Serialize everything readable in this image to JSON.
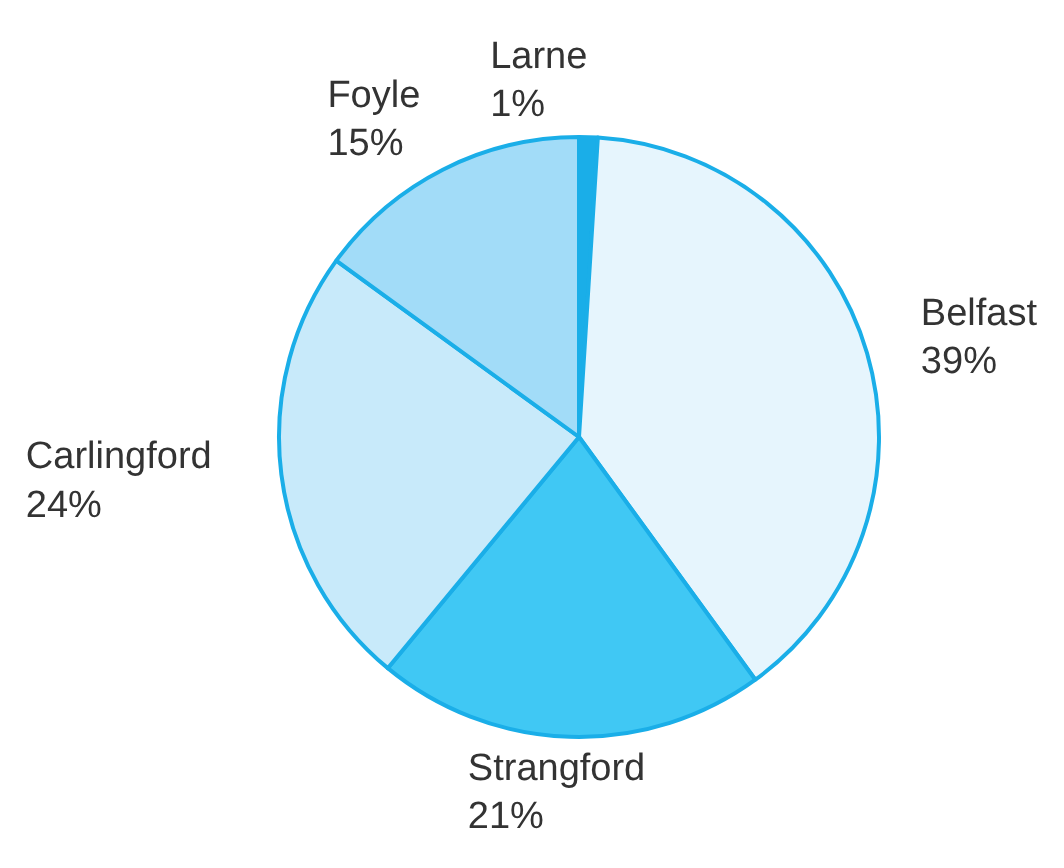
{
  "chart_data": {
    "type": "pie",
    "categories": [
      "Larne",
      "Belfast",
      "Strangford",
      "Carlingford",
      "Foyle"
    ],
    "values": [
      1,
      39,
      21,
      24,
      15
    ],
    "colors": [
      "#1aaee8",
      "#e6f5fd",
      "#40c8f4",
      "#c8eafa",
      "#a2dcf8"
    ],
    "value_labels": [
      "1%",
      "39%",
      "21%",
      "24%",
      "15%"
    ]
  }
}
